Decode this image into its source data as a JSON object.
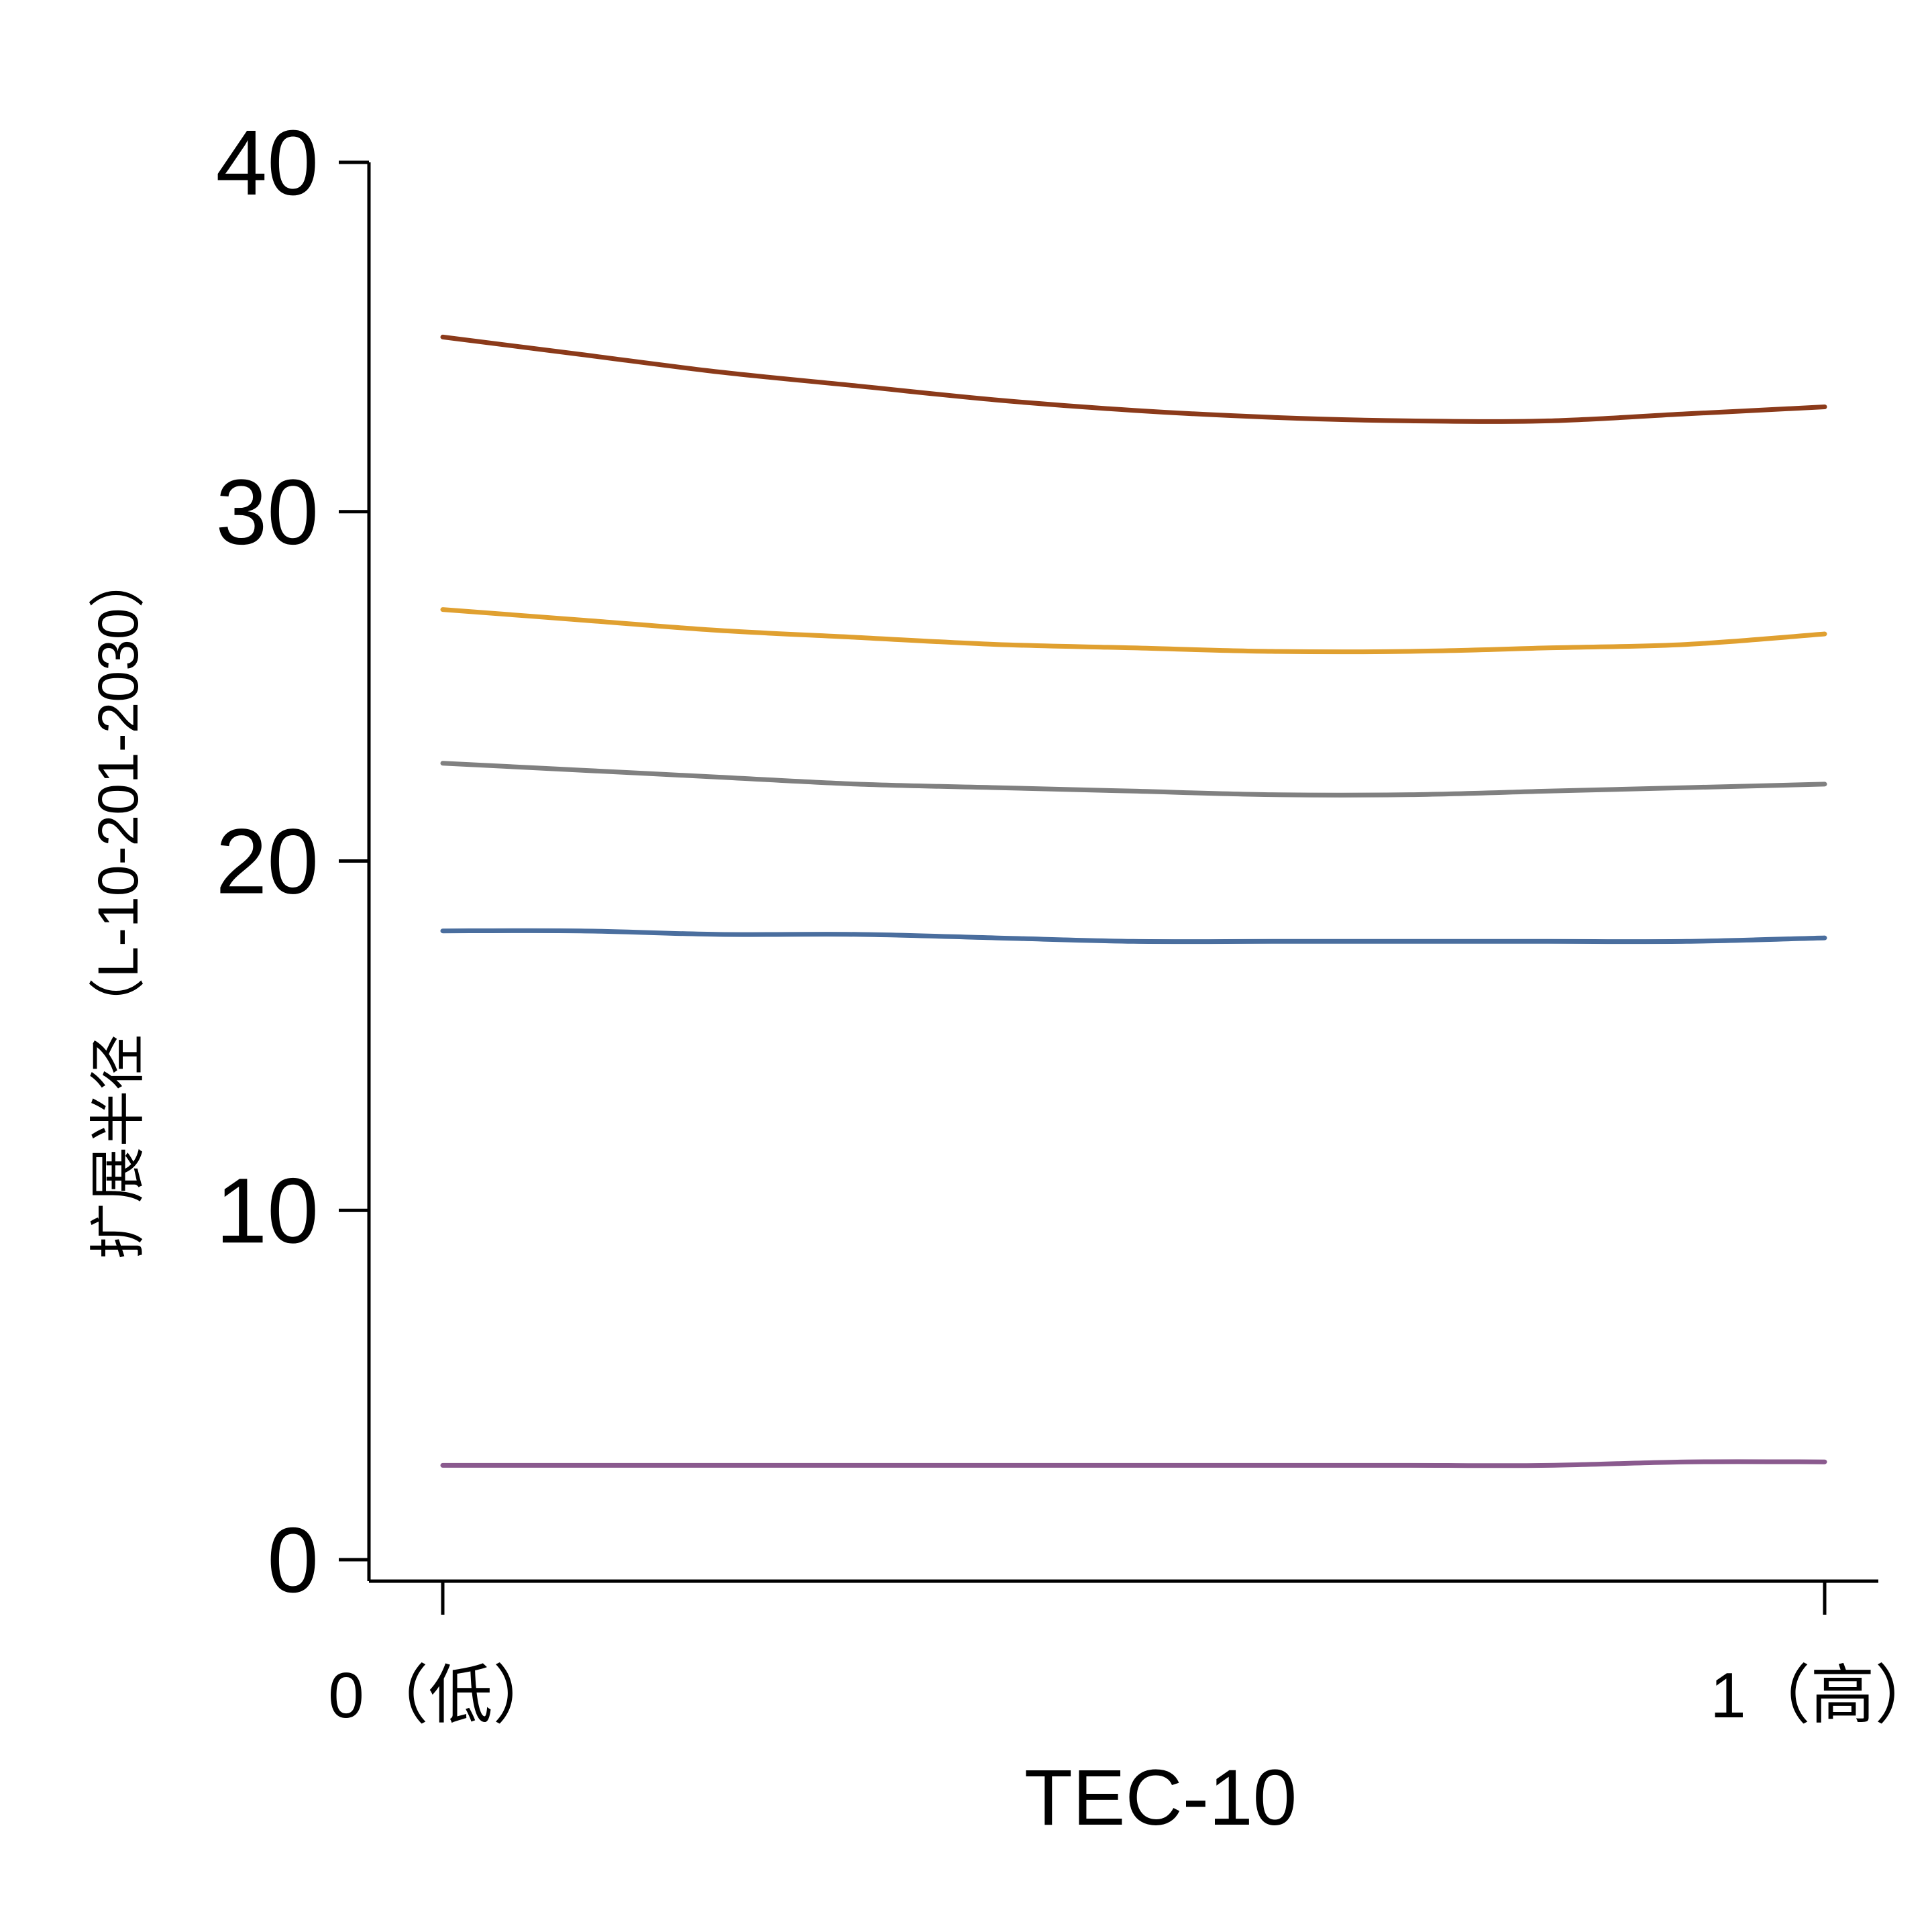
{
  "chart_data": {
    "type": "line",
    "title": "",
    "xlabel": "TEC-10",
    "ylabel": "扩展半径（L-10-201-2030）",
    "xlim": [
      0,
      1
    ],
    "ylim": [
      0,
      40
    ],
    "x_ticks": [
      {
        "value": 0,
        "label": "0（低）"
      },
      {
        "value": 1,
        "label": "1（高）"
      }
    ],
    "y_ticks": [
      {
        "value": 0,
        "label": "0"
      },
      {
        "value": 10,
        "label": "10"
      },
      {
        "value": 20,
        "label": "20"
      },
      {
        "value": 30,
        "label": "30"
      },
      {
        "value": 40,
        "label": "40"
      }
    ],
    "grid": false,
    "legend": "none",
    "x": [
      0,
      0.1,
      0.2,
      0.3,
      0.4,
      0.5,
      0.6,
      0.7,
      0.8,
      0.9,
      1.0
    ],
    "series": [
      {
        "color": "#8B3A1A",
        "values": [
          35.0,
          34.5,
          34.0,
          33.6,
          33.2,
          32.9,
          32.7,
          32.6,
          32.6,
          32.8,
          33.0
        ]
      },
      {
        "color": "#E0A030",
        "values": [
          27.2,
          26.9,
          26.6,
          26.4,
          26.2,
          26.1,
          26.0,
          26.0,
          26.1,
          26.2,
          26.5
        ]
      },
      {
        "color": "#808080",
        "values": [
          22.8,
          22.6,
          22.4,
          22.2,
          22.1,
          22.0,
          21.9,
          21.9,
          22.0,
          22.1,
          22.2
        ]
      },
      {
        "color": "#4A6E9E",
        "values": [
          18.0,
          18.0,
          17.9,
          17.9,
          17.8,
          17.7,
          17.7,
          17.7,
          17.7,
          17.7,
          17.8
        ]
      },
      {
        "color": "#8A5A8E",
        "values": [
          2.7,
          2.7,
          2.7,
          2.7,
          2.7,
          2.7,
          2.7,
          2.7,
          2.7,
          2.8,
          2.8
        ]
      }
    ]
  }
}
